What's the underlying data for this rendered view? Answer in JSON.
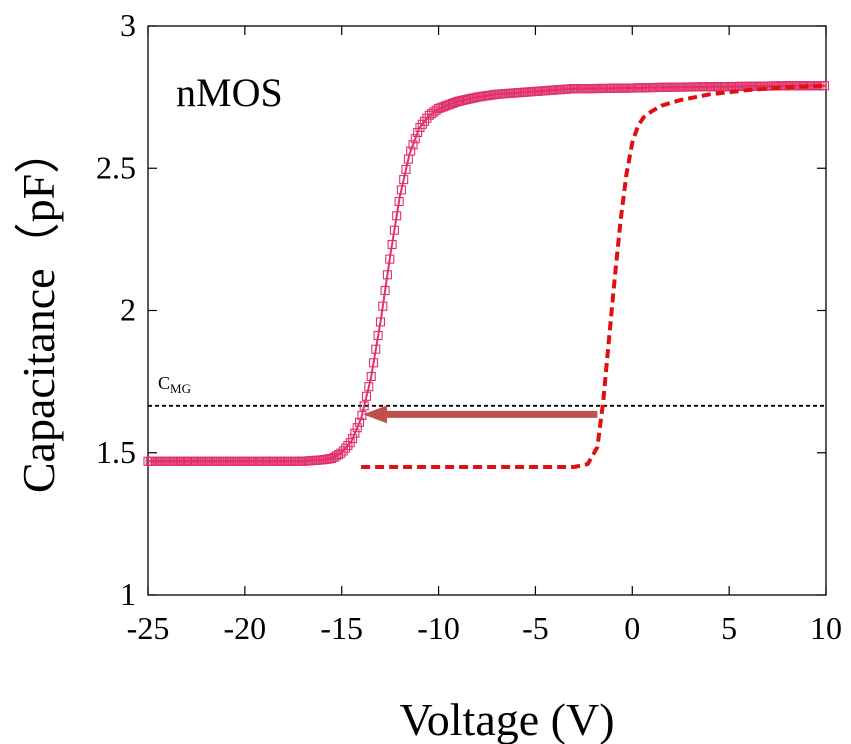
{
  "chart_data": {
    "type": "line",
    "title": "",
    "annotation": "nMOS",
    "xlabel": "Voltage (V)",
    "ylabel": "Capacitance（pF）",
    "xlim": [
      -25,
      10
    ],
    "ylim": [
      1,
      3
    ],
    "xticks": [
      "-25",
      "-20",
      "-15",
      "-10",
      "-5",
      "0",
      "5",
      "10"
    ],
    "yticks": [
      "1",
      "1.5",
      "2",
      "2.5",
      "3"
    ],
    "grid": false,
    "legend": "none",
    "reference_line": {
      "label_main": "C",
      "label_sub": "MG",
      "y": 1.665
    },
    "arrow": {
      "from_x": -1.8,
      "to_x": -13.9,
      "y": 1.635,
      "color": "#c0504d"
    },
    "series": [
      {
        "style": "square-markers",
        "color": "#e0306a",
        "x": [
          -25,
          -20,
          -17,
          -16,
          -15.5,
          -15,
          -14.5,
          -14,
          -13.5,
          -13,
          -12.5,
          -12,
          -11.5,
          -11,
          -10.5,
          -10,
          -9,
          -8,
          -7,
          -6,
          -5,
          -4,
          -3,
          -2,
          0,
          2,
          5,
          8,
          10
        ],
        "y": [
          1.47,
          1.47,
          1.47,
          1.475,
          1.48,
          1.5,
          1.54,
          1.62,
          1.76,
          1.96,
          2.19,
          2.4,
          2.55,
          2.64,
          2.685,
          2.71,
          2.735,
          2.75,
          2.76,
          2.765,
          2.77,
          2.775,
          2.78,
          2.78,
          2.782,
          2.785,
          2.787,
          2.79,
          2.79
        ]
      },
      {
        "style": "dashed",
        "color": "#e01010",
        "x": [
          -14,
          -10,
          -5,
          -3,
          -2.3,
          -1.8,
          -1.5,
          -1.2,
          -0.9,
          -0.6,
          -0.3,
          0,
          0.3,
          0.6,
          1,
          1.5,
          2.5,
          4,
          6,
          8,
          10
        ],
        "y": [
          1.45,
          1.45,
          1.45,
          1.45,
          1.46,
          1.52,
          1.68,
          1.9,
          2.12,
          2.32,
          2.48,
          2.59,
          2.65,
          2.68,
          2.7,
          2.72,
          2.74,
          2.76,
          2.775,
          2.785,
          2.79
        ]
      }
    ]
  }
}
